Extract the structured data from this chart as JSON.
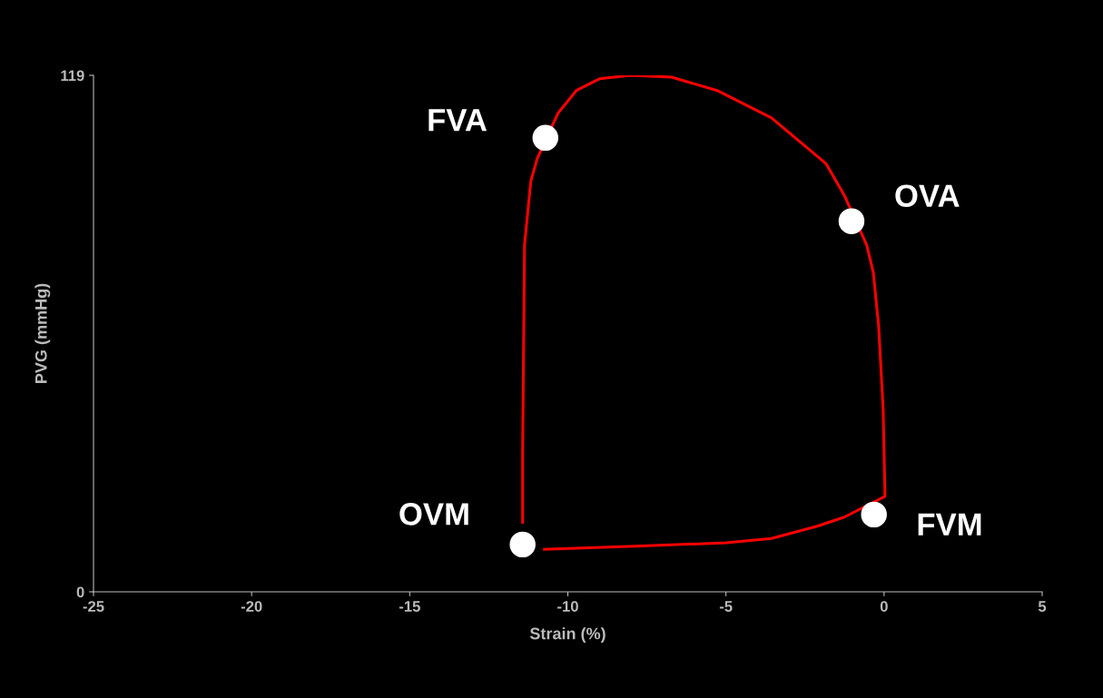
{
  "chart_data": {
    "type": "line",
    "xlabel": "Strain (%)",
    "ylabel": "PVG (mmHg)",
    "xlim": [
      -25,
      5
    ],
    "ylim": [
      0,
      119
    ],
    "xticks": [
      -25,
      -20,
      -15,
      -10,
      -5,
      0,
      5
    ],
    "yticks": [
      0,
      119
    ],
    "grid": false,
    "legend": false,
    "series": [
      {
        "color": "#ff0000",
        "marker": "none",
        "x": [
          -11.43,
          -11.43,
          -11.37,
          -11.17,
          -10.97,
          -10.31,
          -9.73,
          -9.0,
          -8.01,
          -6.72,
          -5.28,
          -3.56,
          -1.84,
          -1.26,
          -0.55,
          -0.34,
          -0.17,
          -0.03,
          0.03,
          -1.26,
          -2.12,
          -3.56,
          -5.0,
          -7.87,
          -10.74
        ],
        "values": [
          16,
          31.8,
          79.9,
          94.6,
          99.8,
          110.3,
          115.5,
          118.2,
          119,
          118.6,
          115.5,
          109.2,
          98.7,
          91.4,
          79.9,
          73.6,
          61.1,
          42.3,
          22,
          17.2,
          15.1,
          12.3,
          11.3,
          10.5,
          9.8
        ]
      },
      {
        "type": "scatter",
        "color": "#ffffff",
        "marker": "circle",
        "x": [
          -10.71,
          -1.03,
          -0.32,
          -11.43
        ],
        "values": [
          104.6,
          85.4,
          17.8,
          10.9
        ]
      }
    ],
    "annotations": [
      {
        "text": "FVA",
        "x": -10.71,
        "y": 104.6
      },
      {
        "text": "OVA",
        "x": -1.03,
        "y": 85.4
      },
      {
        "text": "FVM",
        "x": -0.32,
        "y": 17.8
      },
      {
        "text": "OVM",
        "x": -11.43,
        "y": 10.9
      }
    ]
  }
}
